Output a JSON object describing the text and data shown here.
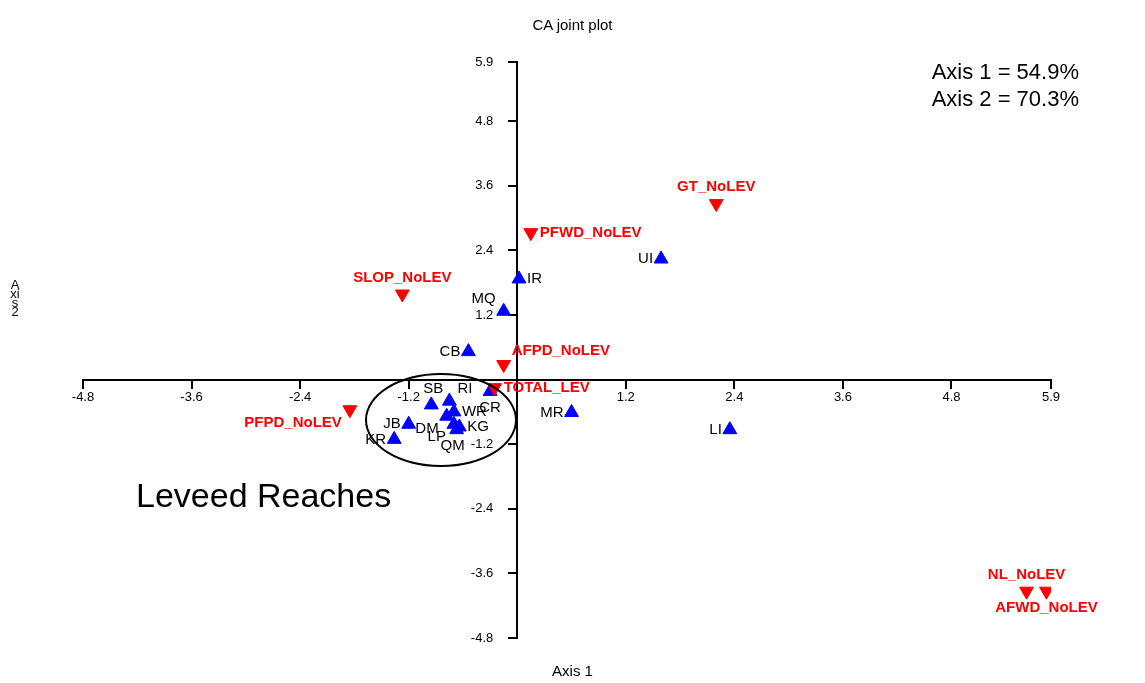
{
  "chart_data": {
    "type": "scatter",
    "title": "CA joint plot",
    "xlabel": "Axis 1",
    "ylabel": "Axis 2",
    "annotations": [
      "Axis 1 = 54.9%",
      "Axis 2 = 70.3%",
      "Leveed Reaches"
    ],
    "xlim": [
      -4.8,
      5.9
    ],
    "xticks": [
      -4.8,
      -3.6,
      -2.4,
      -1.2,
      1.2,
      2.4,
      3.6,
      4.8,
      5.9
    ],
    "ylim": [
      -4.8,
      5.9
    ],
    "yticks": [
      -4.8,
      -3.6,
      -2.4,
      -1.2,
      1.2,
      2.4,
      3.6,
      4.8,
      5.9
    ],
    "grid": false,
    "legend": false,
    "series": [
      {
        "name": "IR",
        "color": "#0000ff",
        "marker": "triangle",
        "x": [
          0.02
        ],
        "values": [
          1.87
        ]
      },
      {
        "name": "MQ",
        "color": "#0000ff",
        "marker": "triangle",
        "x": [
          -0.15
        ],
        "values": [
          1.27
        ]
      },
      {
        "name": "CB",
        "color": "#0000ff",
        "marker": "triangle",
        "x": [
          -0.54
        ],
        "values": [
          0.52
        ]
      },
      {
        "name": "CR",
        "color": "#0000ff",
        "marker": "triangle",
        "x": [
          -0.3
        ],
        "values": [
          -0.22
        ]
      },
      {
        "name": "SB",
        "color": "#0000ff",
        "marker": "triangle",
        "x": [
          -0.95
        ],
        "values": [
          -0.47
        ]
      },
      {
        "name": "RI",
        "color": "#0000ff",
        "marker": "triangle",
        "x": [
          -0.75
        ],
        "values": [
          -0.4
        ]
      },
      {
        "name": "DM",
        "color": "#0000ff",
        "marker": "triangle",
        "x": [
          -0.78
        ],
        "values": [
          -0.68
        ]
      },
      {
        "name": "WR",
        "color": "#0000ff",
        "marker": "triangle",
        "x": [
          -0.7
        ],
        "values": [
          -0.6
        ]
      },
      {
        "name": "LP",
        "color": "#0000ff",
        "marker": "triangle",
        "x": [
          -0.7
        ],
        "values": [
          -0.83
        ]
      },
      {
        "name": "KG",
        "color": "#0000ff",
        "marker": "triangle",
        "x": [
          -0.64
        ],
        "values": [
          -0.88
        ]
      },
      {
        "name": "QM",
        "color": "#0000ff",
        "marker": "triangle",
        "x": [
          -0.67
        ],
        "values": [
          -0.93
        ]
      },
      {
        "name": "JB",
        "color": "#0000ff",
        "marker": "triangle",
        "x": [
          -1.2
        ],
        "values": [
          -0.83
        ]
      },
      {
        "name": "KR",
        "color": "#0000ff",
        "marker": "triangle",
        "x": [
          -1.36
        ],
        "values": [
          -1.11
        ]
      },
      {
        "name": "MR",
        "color": "#0000ff",
        "marker": "triangle",
        "x": [
          0.6
        ],
        "values": [
          -0.61
        ]
      },
      {
        "name": "UI",
        "color": "#0000ff",
        "marker": "triangle",
        "x": [
          1.59
        ],
        "values": [
          2.24
        ]
      },
      {
        "name": "LI",
        "color": "#0000ff",
        "marker": "triangle",
        "x": [
          2.35
        ],
        "values": [
          -0.93
        ]
      },
      {
        "name": "GT_NoLEV",
        "color": "#ff0000",
        "marker": "triangle-down",
        "x": [
          2.2
        ],
        "values": [
          3.27
        ]
      },
      {
        "name": "PFWD_NoLEV",
        "color": "#ff0000",
        "marker": "triangle-down",
        "x": [
          0.15
        ],
        "values": [
          2.73
        ]
      },
      {
        "name": "SLOP_NoLEV",
        "color": "#ff0000",
        "marker": "triangle-down",
        "x": [
          -1.27
        ],
        "values": [
          1.59
        ]
      },
      {
        "name": "AFPD_NoLEV",
        "color": "#ff0000",
        "marker": "triangle-down",
        "x": [
          -0.15
        ],
        "values": [
          0.28
        ]
      },
      {
        "name": "TOTAL_LEV",
        "color": "#ff0000",
        "marker": "triangle-down",
        "x": [
          -0.25
        ],
        "values": [
          -0.15
        ]
      },
      {
        "name": "PFPD_NoLEV",
        "color": "#ff0000",
        "marker": "triangle-down",
        "x": [
          -1.85
        ],
        "values": [
          -0.56
        ]
      },
      {
        "name": "NL_NoLEV",
        "color": "#ff0000",
        "marker": "triangle-down",
        "x": [
          5.63
        ],
        "values": [
          -3.93
        ]
      },
      {
        "name": "AFWD_NoLEV",
        "color": "#ff0000",
        "marker": "triangle-down",
        "x": [
          5.85
        ],
        "values": [
          -3.93
        ]
      }
    ]
  }
}
